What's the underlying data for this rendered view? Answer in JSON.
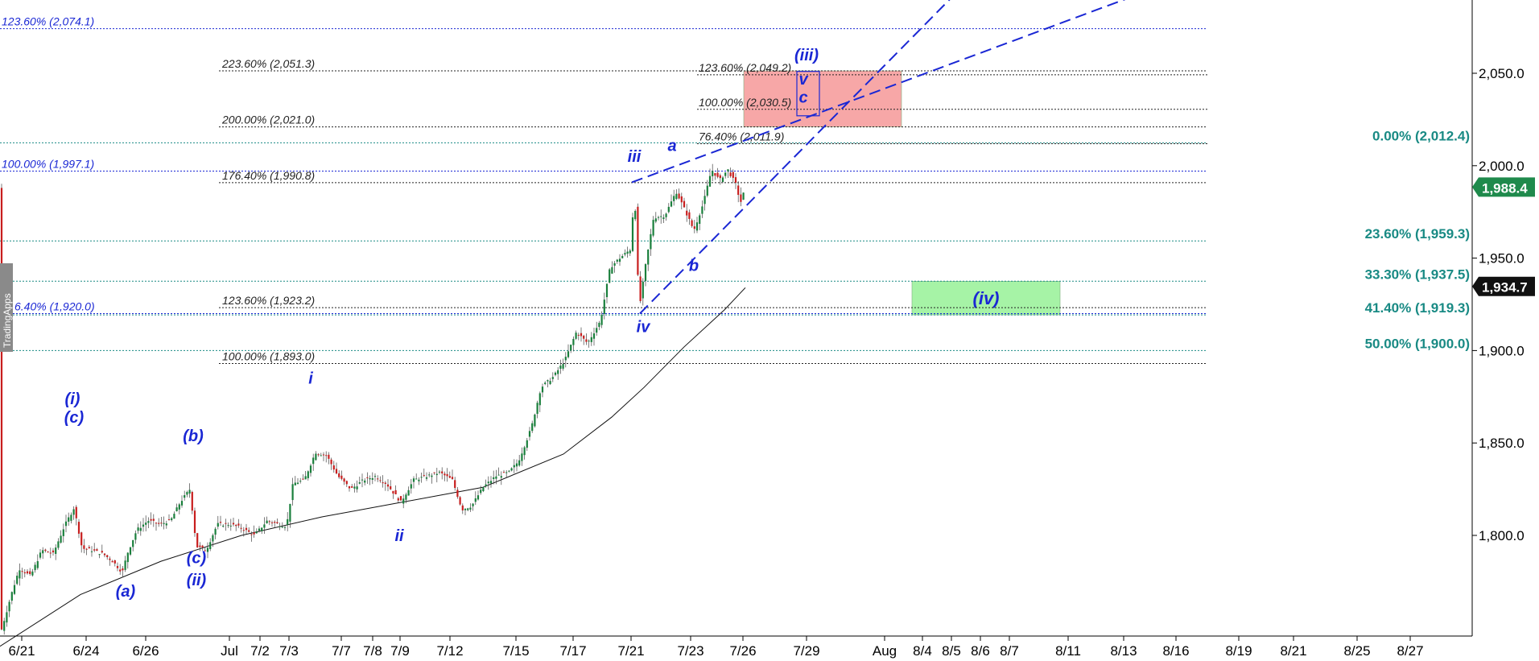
{
  "watermark": "TradingApps",
  "chart_data": {
    "type": "candlestick",
    "title": "",
    "y_axis": {
      "range": [
        1730,
        2095
      ],
      "ticks": [
        {
          "value": 1800,
          "label": "1,800.0"
        },
        {
          "value": 1850,
          "label": "1,850.0"
        },
        {
          "value": 1900,
          "label": "1,900.0"
        },
        {
          "value": 1950,
          "label": "1,950.0"
        },
        {
          "value": 2000,
          "label": "2,000.0"
        },
        {
          "value": 2050,
          "label": "2,050.0"
        }
      ]
    },
    "x_axis": {
      "ticks": [
        "6/21",
        "6/24",
        "6/26",
        "Jul",
        "7/2",
        "7/3",
        "7/7",
        "7/8",
        "7/9",
        "7/12",
        "7/15",
        "7/17",
        "7/21",
        "7/23",
        "7/26",
        "7/29",
        "Aug",
        "8/4",
        "8/5",
        "8/6",
        "8/7",
        "8/11",
        "8/13",
        "8/16",
        "8/19",
        "8/21",
        "8/25",
        "8/27"
      ]
    },
    "price_tags": [
      {
        "value": 1988.4,
        "label": "1,988.4",
        "color": "#1f8a4c"
      },
      {
        "value": 1934.7,
        "label": "1,934.7",
        "color": "#111111"
      }
    ],
    "price_path": [
      [
        0,
        1746
      ],
      [
        14,
        1768
      ],
      [
        24,
        1782
      ],
      [
        38,
        1778
      ],
      [
        52,
        1792
      ],
      [
        66,
        1790
      ],
      [
        80,
        1805
      ],
      [
        92,
        1815
      ],
      [
        102,
        1793
      ],
      [
        114,
        1792
      ],
      [
        128,
        1790
      ],
      [
        140,
        1786
      ],
      [
        152,
        1780
      ],
      [
        158,
        1790
      ],
      [
        170,
        1803
      ],
      [
        184,
        1808
      ],
      [
        198,
        1806
      ],
      [
        212,
        1808
      ],
      [
        224,
        1818
      ],
      [
        236,
        1825
      ],
      [
        244,
        1794
      ],
      [
        256,
        1792
      ],
      [
        270,
        1806
      ],
      [
        286,
        1806
      ],
      [
        300,
        1804
      ],
      [
        316,
        1800
      ],
      [
        332,
        1808
      ],
      [
        346,
        1806
      ],
      [
        356,
        1805
      ],
      [
        364,
        1828
      ],
      [
        378,
        1830
      ],
      [
        392,
        1845
      ],
      [
        406,
        1843
      ],
      [
        420,
        1832
      ],
      [
        436,
        1825
      ],
      [
        452,
        1830
      ],
      [
        466,
        1832
      ],
      [
        480,
        1828
      ],
      [
        498,
        1818
      ],
      [
        514,
        1830
      ],
      [
        530,
        1832
      ],
      [
        546,
        1834
      ],
      [
        562,
        1830
      ],
      [
        574,
        1814
      ],
      [
        586,
        1816
      ],
      [
        600,
        1826
      ],
      [
        616,
        1832
      ],
      [
        632,
        1834
      ],
      [
        644,
        1840
      ],
      [
        660,
        1858
      ],
      [
        672,
        1880
      ],
      [
        688,
        1886
      ],
      [
        702,
        1895
      ],
      [
        716,
        1910
      ],
      [
        730,
        1904
      ],
      [
        746,
        1916
      ],
      [
        758,
        1945
      ],
      [
        770,
        1950
      ],
      [
        784,
        1955
      ],
      [
        788,
        1990
      ],
      [
        794,
        1922
      ],
      [
        802,
        1946
      ],
      [
        812,
        1972
      ],
      [
        826,
        1973
      ],
      [
        840,
        1986
      ],
      [
        852,
        1975
      ],
      [
        862,
        1965
      ],
      [
        874,
        1980
      ],
      [
        884,
        1998
      ],
      [
        894,
        1992
      ],
      [
        904,
        1998
      ],
      [
        914,
        1990
      ],
      [
        920,
        1980
      ],
      [
        926,
        1988
      ]
    ],
    "moving_average": [
      [
        0,
        1740
      ],
      [
        100,
        1768
      ],
      [
        200,
        1786
      ],
      [
        300,
        1800
      ],
      [
        400,
        1810
      ],
      [
        500,
        1818
      ],
      [
        600,
        1826
      ],
      [
        700,
        1844
      ],
      [
        760,
        1864
      ],
      [
        800,
        1880
      ],
      [
        850,
        1902
      ],
      [
        900,
        1922
      ],
      [
        926,
        1934
      ]
    ],
    "fib_levels": [
      {
        "value": 2074.1,
        "label": "123.60% (2,074.1)",
        "color": "#1a27d4",
        "x1": 0,
        "x2": 1500,
        "label_x": 2,
        "label_side": "left",
        "style": "dotted"
      },
      {
        "value": 2051.3,
        "label": "223.60% (2,051.3)",
        "color": "#222222",
        "x1": 272,
        "x2": 1500,
        "label_x": 276,
        "label_side": "left",
        "style": "dotted"
      },
      {
        "value": 2049.2,
        "label": "123.60% (2,049.2)",
        "color": "#222222",
        "x1": 866,
        "x2": 1500,
        "label_x": 868,
        "label_side": "left",
        "style": "dotted"
      },
      {
        "value": 2030.5,
        "label": "100.00% (2,030.5)",
        "color": "#222222",
        "x1": 866,
        "x2": 1500,
        "label_x": 868,
        "label_side": "left",
        "style": "dotted"
      },
      {
        "value": 2021.0,
        "label": "200.00% (2,021.0)",
        "color": "#222222",
        "x1": 272,
        "x2": 1500,
        "label_x": 276,
        "label_side": "left",
        "style": "dotted"
      },
      {
        "value": 2012.4,
        "label": "0.00% (2,012.4)",
        "color": "#198a84",
        "x1": 0,
        "x2": 1500,
        "label_x": 1495,
        "label_side": "right",
        "style": "dotted"
      },
      {
        "value": 2011.9,
        "label": "76.40% (2,011.9)",
        "color": "#222222",
        "x1": 866,
        "x2": 1500,
        "label_x": 868,
        "label_side": "left",
        "style": "dotted"
      },
      {
        "value": 1997.1,
        "label": "100.00% (1,997.1)",
        "color": "#1a27d4",
        "x1": 0,
        "x2": 1500,
        "label_x": 2,
        "label_side": "left",
        "style": "dotted"
      },
      {
        "value": 1990.8,
        "label": "176.40% (1,990.8)",
        "color": "#222222",
        "x1": 272,
        "x2": 1500,
        "label_x": 276,
        "label_side": "left",
        "style": "dotted"
      },
      {
        "value": 1959.3,
        "label": "23.60% (1,959.3)",
        "color": "#198a84",
        "x1": 0,
        "x2": 1500,
        "label_x": 1495,
        "label_side": "right",
        "style": "dotted"
      },
      {
        "value": 1937.5,
        "label": "33.30% (1,937.5)",
        "color": "#198a84",
        "x1": 0,
        "x2": 1500,
        "label_x": 1495,
        "label_side": "right",
        "style": "dotted"
      },
      {
        "value": 1923.2,
        "label": "123.60% (1,923.2)",
        "color": "#222222",
        "x1": 272,
        "x2": 1500,
        "label_x": 276,
        "label_side": "left",
        "style": "dotted"
      },
      {
        "value": 1920.0,
        "label": "6.40% (1,920.0)",
        "color": "#1a27d4",
        "x1": 0,
        "x2": 1500,
        "label_x": 18,
        "label_side": "left",
        "style": "dotted"
      },
      {
        "value": 1919.3,
        "label": "41.40% (1,919.3)",
        "color": "#198a84",
        "x1": 0,
        "x2": 1500,
        "label_x": 1495,
        "label_side": "right",
        "style": "dotted"
      },
      {
        "value": 1900.0,
        "label": "50.00% (1,900.0)",
        "color": "#198a84",
        "x1": 0,
        "x2": 1500,
        "label_x": 1495,
        "label_side": "right",
        "style": "dotted"
      },
      {
        "value": 1893.0,
        "label": "100.00% (1,893.0)",
        "color": "#222222",
        "x1": 272,
        "x2": 1500,
        "label_x": 276,
        "label_side": "left",
        "style": "dotted"
      }
    ],
    "zones": [
      {
        "name": "target-zone",
        "y_top": 2051.3,
        "y_bottom": 2021.0,
        "color": "#f7a7a7",
        "x1": 924,
        "x2": 1120,
        "label": ""
      },
      {
        "name": "wave-iv-zone",
        "y_top": 1937.5,
        "y_bottom": 1919.3,
        "color": "#a6f3a6",
        "x1": 1133,
        "x2": 1317,
        "label": "(iv)"
      }
    ],
    "trendlines": [
      {
        "from": [
          785,
          1991
        ],
        "to": [
          1410,
          2092
        ],
        "dashed": true
      },
      {
        "from": [
          795,
          1920
        ],
        "to": [
          1180,
          2090
        ],
        "dashed": true
      }
    ],
    "wave_labels": [
      {
        "text": "(i)",
        "x": 90,
        "value": 1871
      },
      {
        "text": "(c)",
        "x": 92,
        "value": 1861
      },
      {
        "text": "(a)",
        "x": 156,
        "value": 1767
      },
      {
        "text": "(b)",
        "x": 240,
        "value": 1851
      },
      {
        "text": "(c)",
        "x": 244,
        "value": 1785
      },
      {
        "text": "(ii)",
        "x": 244,
        "value": 1773
      },
      {
        "text": "i",
        "x": 386,
        "value": 1882
      },
      {
        "text": "ii",
        "x": 496,
        "value": 1797
      },
      {
        "text": "iii",
        "x": 788,
        "value": 2002
      },
      {
        "text": "iv",
        "x": 799,
        "value": 1910
      },
      {
        "text": "a",
        "x": 835,
        "value": 2008
      },
      {
        "text": "b",
        "x": 862,
        "value": 1943
      },
      {
        "text": "(iii)",
        "x": 1002,
        "value": 2057
      },
      {
        "text": "v",
        "x": 998,
        "value": 2044
      },
      {
        "text": "c",
        "x": 998,
        "value": 2034
      }
    ],
    "wave_box": {
      "value_top": 2051,
      "value_bottom": 2027,
      "x1": 990,
      "x2": 1018
    },
    "colors": {
      "up": "#1a7f3c",
      "down": "#c81e1e",
      "wave": "#1a27d4",
      "axis": "#000000"
    }
  }
}
